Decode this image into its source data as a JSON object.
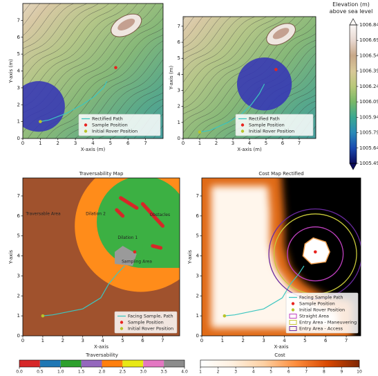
{
  "chart_data": [
    {
      "type": "map",
      "xlabel": "X-axis (m)",
      "ylabel": "Y-axis (m)",
      "xlim": [
        0,
        8
      ],
      "ylim": [
        0,
        8
      ],
      "xticks": [
        0,
        1,
        2,
        3,
        4,
        5,
        6,
        7
      ],
      "yticks": [
        0,
        1,
        2,
        3,
        4,
        5,
        6,
        7
      ],
      "legend": "lower right",
      "series": [
        {
          "name": "Rectified Path",
          "color": "#3cc6c0",
          "x": [
            1,
            1.5,
            2.5,
            3.4,
            4.1,
            4.6,
            4.8
          ],
          "values": [
            1,
            1.1,
            1.5,
            2,
            2.5,
            3,
            3.4
          ]
        },
        {
          "name": "Sample Position",
          "color": "#e8231f",
          "x": [
            5.3
          ],
          "values": [
            4.2
          ]
        },
        {
          "name": "Initial Rover Position",
          "color": "#b8c42a",
          "x": [
            1
          ],
          "values": [
            1
          ]
        }
      ]
    },
    {
      "type": "map",
      "xlabel": "X-axis (m)",
      "ylabel": "Y-axis (m)",
      "xlim": [
        0,
        8
      ],
      "ylim": [
        0,
        7.6
      ],
      "xticks": [
        0,
        1,
        2,
        3,
        4,
        5,
        6,
        7
      ],
      "yticks": [
        0,
        1,
        2,
        3,
        4,
        5,
        6,
        7
      ],
      "legend": "lower right",
      "series": [
        {
          "name": "Rectified Path",
          "color": "#3cc6c0",
          "x": [
            1,
            1.6,
            2.7,
            3.5,
            4.1,
            4.6,
            4.9
          ],
          "values": [
            0.4,
            0.5,
            1,
            1.5,
            2.1,
            2.8,
            3.4
          ]
        },
        {
          "name": "Sample Position",
          "color": "#e8231f",
          "x": [
            5.6
          ],
          "values": [
            4.3
          ]
        },
        {
          "name": "Initial Rover Position",
          "color": "#b8c42a",
          "x": [
            1
          ],
          "values": [
            0.4
          ]
        }
      ]
    },
    {
      "type": "colorbar",
      "title": "Elevation (m) above sea level",
      "ylim": [
        1005.49,
        1006.84
      ],
      "yticks": [
        1005.49,
        1005.64,
        1005.79,
        1005.94,
        1006.09,
        1006.24,
        1006.39,
        1006.54,
        1006.69,
        1006.84
      ],
      "colors": [
        "#0c0c5c",
        "#1a4ab0",
        "#2a8ab8",
        "#3aa890",
        "#78b868",
        "#b8c878",
        "#d8c898",
        "#c8a888",
        "#e8d8d0",
        "#fbf8f6"
      ]
    },
    {
      "type": "map",
      "title": "Traversability Map",
      "xlabel": "X-axis",
      "ylabel": "Y-axis",
      "xlim": [
        0,
        7.85
      ],
      "ylim": [
        0,
        7.9
      ],
      "xticks": [
        0,
        1,
        2,
        3,
        4,
        5,
        6,
        7
      ],
      "yticks": [
        0,
        1,
        2,
        3,
        4,
        5,
        6,
        7
      ],
      "legend": "lower right",
      "annotations": [
        "Traversable Area",
        "Dilation 2",
        "Obstacles",
        "Dilation 1",
        "Sampling Area"
      ],
      "series": [
        {
          "name": "Facing Sample, Path",
          "color": "#3cc6c0",
          "x": [
            1,
            1.5,
            3,
            3.9,
            4.3,
            4.8,
            5.1
          ],
          "values": [
            1,
            1.05,
            1.35,
            1.9,
            2.6,
            3.2,
            3.5
          ]
        },
        {
          "name": "Sample Position",
          "color": "#e8231f",
          "x": [
            5.6
          ],
          "values": [
            4.2
          ]
        },
        {
          "name": "Initial Rover Position",
          "color": "#b8c42a",
          "x": [
            1
          ],
          "values": [
            1
          ]
        }
      ]
    },
    {
      "type": "map",
      "title": "Cost Map Rectified",
      "xlabel": "X-axis",
      "ylabel": "Y-axis",
      "xlim": [
        0,
        7.7
      ],
      "ylim": [
        0,
        7.9
      ],
      "xticks": [
        0,
        1,
        2,
        3,
        4,
        5,
        6,
        7
      ],
      "yticks": [
        0,
        1,
        2,
        3,
        4,
        5,
        6,
        7
      ],
      "legend": "lower right",
      "series": [
        {
          "name": "Facing Sample Path",
          "color": "#3cc6c0",
          "x": [
            1.1,
            1.6,
            3,
            3.9,
            4.3,
            4.7,
            4.95
          ],
          "values": [
            1,
            1.05,
            1.35,
            1.9,
            2.6,
            3.1,
            3.5
          ]
        },
        {
          "name": "Sample Position",
          "color": "#e8231f",
          "x": [
            5.5
          ],
          "values": [
            4.2
          ]
        },
        {
          "name": "Initial Rover Position",
          "color": "#b8c42a",
          "x": [
            1.1
          ],
          "values": [
            1
          ]
        },
        {
          "name": "Straight Area",
          "color": "#c040c0",
          "x": [
            5.5
          ],
          "values": [
            4.1
          ],
          "radius": 1.35
        },
        {
          "name": "Entry Area - Maneuvering",
          "color": "#c8c83a",
          "x": [
            5.5
          ],
          "values": [
            4.1
          ],
          "radius": 2.0
        },
        {
          "name": "Entry Area - Access",
          "color": "#6a2aa0",
          "x": [
            5.5
          ],
          "values": [
            4.1
          ],
          "radius": 2.25
        }
      ]
    },
    {
      "type": "colorbar",
      "title": "Traversability",
      "xlim": [
        0,
        4
      ],
      "discrete": true,
      "xticks": [
        {
          "value": 0,
          "label": "0.0"
        },
        0.5,
        {
          "value": 1,
          "label": "1.0"
        },
        1.5,
        {
          "value": 2,
          "label": "2.0"
        },
        2.5,
        {
          "value": 3,
          "label": "3.0"
        },
        3.5,
        {
          "value": 4,
          "label": "4.0"
        }
      ],
      "colors": [
        "#d62728",
        "#1f77b4",
        "#2ca02c",
        "#9467bd",
        "#ff7f0e",
        "#e8e814",
        "#e377c2",
        "#8c8c8c"
      ]
    },
    {
      "type": "colorbar",
      "title": "Cost",
      "xlim": [
        1,
        10
      ],
      "xticks": [
        1,
        2,
        3,
        4,
        5,
        6,
        7,
        8,
        9,
        10
      ],
      "colors": [
        "#ffffff",
        "#fff0e0",
        "#fdd0a2",
        "#fd8d3c",
        "#d94801",
        "#7f2704"
      ]
    }
  ]
}
